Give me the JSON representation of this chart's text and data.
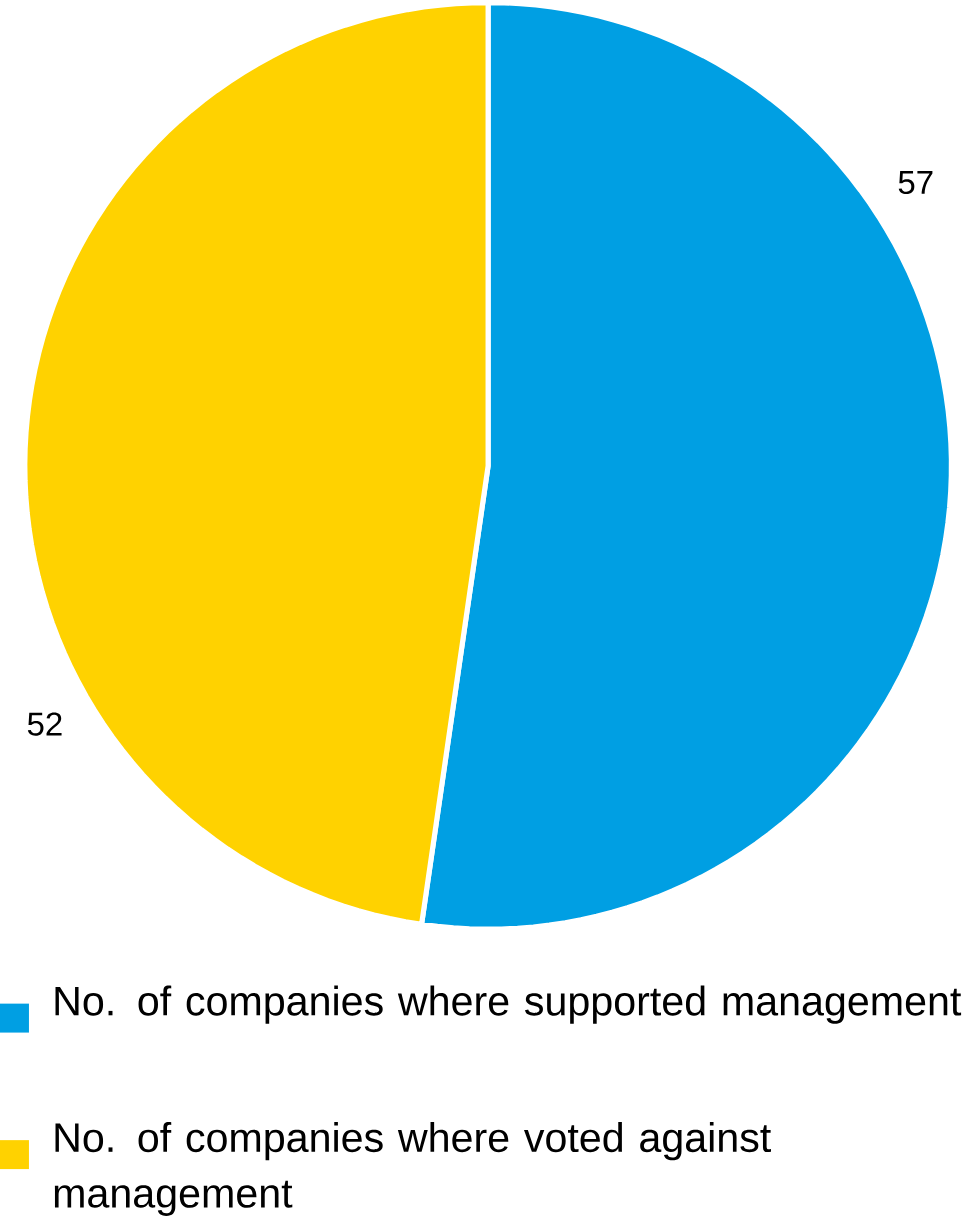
{
  "chart_data": {
    "type": "pie",
    "categories": [
      "No. of companies where supported management",
      "No. of companies where voted against management"
    ],
    "values": [
      57,
      52
    ],
    "colors": [
      "#009fe3",
      "#ffd200"
    ],
    "data_labels": true,
    "legend": "bottom"
  }
}
